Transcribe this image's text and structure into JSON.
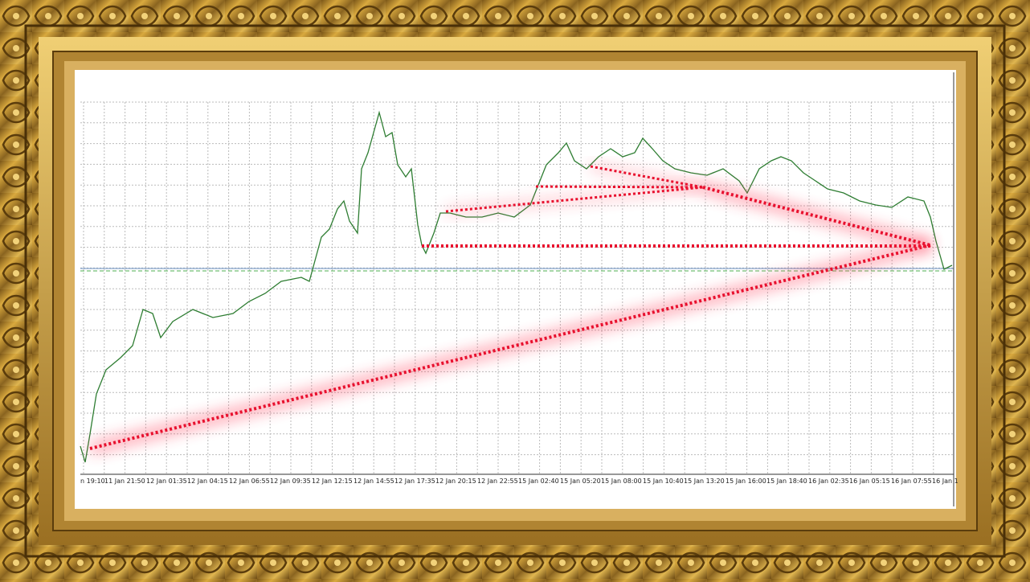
{
  "x_axis_labels": [
    "n 19:10",
    "11 Jan 21:50",
    "12 Jan 01:35",
    "12 Jan 04:15",
    "12 Jan 06:55",
    "12 Jan 09:35",
    "12 Jan 12:15",
    "12 Jan 14:55",
    "12 Jan 17:35",
    "12 Jan 20:15",
    "12 Jan 22:55",
    "15 Jan 02:40",
    "15 Jan 05:20",
    "15 Jan 08:00",
    "15 Jan 10:40",
    "15 Jan 13:20",
    "15 Jan 16:00",
    "15 Jan 18:40",
    "16 Jan 02:35",
    "16 Jan 05:15",
    "16 Jan 07:55",
    "16 Jan 1"
  ]
}
